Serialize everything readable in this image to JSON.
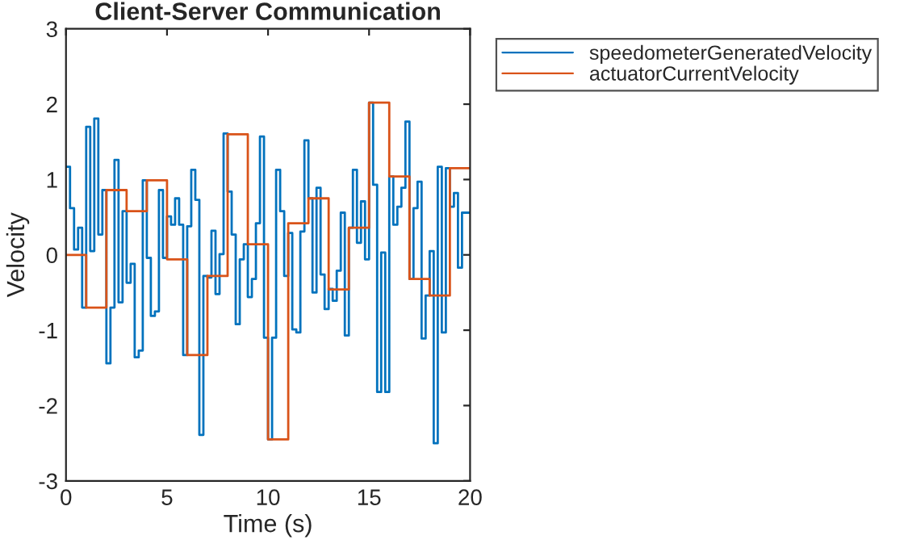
{
  "chart_data": {
    "type": "step",
    "title": "Client-Server Communication",
    "xlabel": "Time (s)",
    "ylabel": "Velocity",
    "xlim": [
      0,
      20
    ],
    "xticks": [
      0,
      5,
      10,
      15,
      20
    ],
    "ylim": [
      -3,
      3
    ],
    "yticks": [
      -3,
      -2,
      -1,
      0,
      1,
      2,
      3
    ],
    "grid": false,
    "legend": "top right",
    "series": [
      {
        "name": "speedometerGeneratedVelocity",
        "color": "#0072bd",
        "x": [
          0,
          0.2,
          0.4,
          0.6,
          0.8,
          1,
          1.2,
          1.4,
          1.6,
          1.8,
          2,
          2.2,
          2.4,
          2.6,
          2.8,
          3,
          3.2,
          3.4,
          3.6,
          3.8,
          4,
          4.2,
          4.4,
          4.6,
          4.8,
          5,
          5.2,
          5.4,
          5.6,
          5.8,
          6,
          6.2,
          6.4,
          6.6,
          6.8,
          7,
          7.2,
          7.4,
          7.6,
          7.8,
          8,
          8.2,
          8.4,
          8.6,
          8.8,
          9,
          9.2,
          9.4,
          9.6,
          9.8,
          10,
          10.2,
          10.4,
          10.6,
          10.8,
          11,
          11.2,
          11.4,
          11.6,
          11.8,
          12,
          12.2,
          12.4,
          12.6,
          12.8,
          13,
          13.2,
          13.4,
          13.6,
          13.8,
          14,
          14.2,
          14.4,
          14.6,
          14.8,
          15,
          15.2,
          15.4,
          15.6,
          15.8,
          16,
          16.2,
          16.4,
          16.6,
          16.8,
          17,
          17.2,
          17.4,
          17.6,
          17.8,
          18,
          18.2,
          18.4,
          18.6,
          18.8,
          19,
          19.2,
          19.4,
          19.6,
          19.8,
          20
        ],
        "values": [
          1.17,
          0.62,
          0.07,
          0.36,
          -0.7,
          1.7,
          0.05,
          1.81,
          0.27,
          0.86,
          -1.44,
          -0.7,
          1.26,
          -0.63,
          0.58,
          -0.37,
          -0.12,
          -1.36,
          -1.27,
          0.99,
          -0.04,
          -0.81,
          -0.75,
          0.86,
          -0.04,
          0.51,
          0.4,
          0.75,
          0.4,
          -1.33,
          0.38,
          1.13,
          0.73,
          -2.39,
          -0.28,
          -0.3,
          0.32,
          -0.52,
          0.01,
          1.61,
          0.84,
          0.27,
          -0.92,
          -0.06,
          0.14,
          -0.56,
          -0.32,
          0.42,
          1.57,
          -1.1,
          -2.45,
          -1.1,
          1.13,
          0.58,
          -0.28,
          0.29,
          -0.99,
          -1.03,
          0.31,
          1.52,
          0.75,
          -0.5,
          0.89,
          -0.26,
          -0.72,
          -0.45,
          -0.61,
          -0.21,
          0.56,
          -1.07,
          0.36,
          1.13,
          0.16,
          0.71,
          -0.06,
          2.02,
          0.93,
          -1.82,
          0.03,
          -1.82,
          1.04,
          0.4,
          0.64,
          0.89,
          1.77,
          -0.32,
          0.62,
          0.97,
          -1.11,
          -0.54,
          0.05,
          -2.5,
          1.17,
          -1.03,
          1.15,
          0.64,
          0.82,
          -0.17,
          0.56,
          0.56,
          0.56
        ]
      },
      {
        "name": "actuatorCurrentVelocity",
        "color": "#d95319",
        "x": [
          0,
          1,
          2,
          3,
          4,
          5,
          6,
          7,
          8,
          9,
          10,
          11,
          12,
          13,
          14,
          15,
          16,
          17,
          18,
          19,
          20
        ],
        "values": [
          0,
          -0.7,
          0.86,
          0.58,
          0.99,
          -0.06,
          -1.33,
          -0.28,
          1.6,
          0.14,
          -2.45,
          0.42,
          0.75,
          -0.46,
          0.36,
          2.02,
          1.04,
          -0.32,
          -0.54,
          1.15,
          1.15
        ]
      }
    ]
  }
}
